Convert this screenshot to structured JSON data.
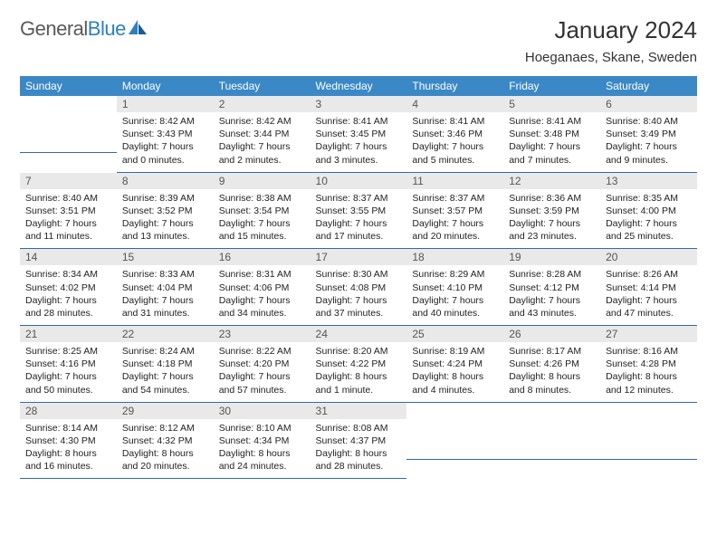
{
  "logo": {
    "text1": "General",
    "text2": "Blue"
  },
  "title": "January 2024",
  "location": "Hoeganaes, Skane, Sweden",
  "colors": {
    "header_bg": "#3b88c6",
    "header_text": "#ffffff",
    "daynum_bg": "#e9e9e9",
    "border": "#2d6da3",
    "logo_gray": "#5a5a5a",
    "logo_blue": "#2d7fc1"
  },
  "daysOfWeek": [
    "Sunday",
    "Monday",
    "Tuesday",
    "Wednesday",
    "Thursday",
    "Friday",
    "Saturday"
  ],
  "weeks": [
    [
      {
        "n": "",
        "sr": "",
        "ss": "",
        "dl": ""
      },
      {
        "n": "1",
        "sr": "Sunrise: 8:42 AM",
        "ss": "Sunset: 3:43 PM",
        "dl": "Daylight: 7 hours and 0 minutes."
      },
      {
        "n": "2",
        "sr": "Sunrise: 8:42 AM",
        "ss": "Sunset: 3:44 PM",
        "dl": "Daylight: 7 hours and 2 minutes."
      },
      {
        "n": "3",
        "sr": "Sunrise: 8:41 AM",
        "ss": "Sunset: 3:45 PM",
        "dl": "Daylight: 7 hours and 3 minutes."
      },
      {
        "n": "4",
        "sr": "Sunrise: 8:41 AM",
        "ss": "Sunset: 3:46 PM",
        "dl": "Daylight: 7 hours and 5 minutes."
      },
      {
        "n": "5",
        "sr": "Sunrise: 8:41 AM",
        "ss": "Sunset: 3:48 PM",
        "dl": "Daylight: 7 hours and 7 minutes."
      },
      {
        "n": "6",
        "sr": "Sunrise: 8:40 AM",
        "ss": "Sunset: 3:49 PM",
        "dl": "Daylight: 7 hours and 9 minutes."
      }
    ],
    [
      {
        "n": "7",
        "sr": "Sunrise: 8:40 AM",
        "ss": "Sunset: 3:51 PM",
        "dl": "Daylight: 7 hours and 11 minutes."
      },
      {
        "n": "8",
        "sr": "Sunrise: 8:39 AM",
        "ss": "Sunset: 3:52 PM",
        "dl": "Daylight: 7 hours and 13 minutes."
      },
      {
        "n": "9",
        "sr": "Sunrise: 8:38 AM",
        "ss": "Sunset: 3:54 PM",
        "dl": "Daylight: 7 hours and 15 minutes."
      },
      {
        "n": "10",
        "sr": "Sunrise: 8:37 AM",
        "ss": "Sunset: 3:55 PM",
        "dl": "Daylight: 7 hours and 17 minutes."
      },
      {
        "n": "11",
        "sr": "Sunrise: 8:37 AM",
        "ss": "Sunset: 3:57 PM",
        "dl": "Daylight: 7 hours and 20 minutes."
      },
      {
        "n": "12",
        "sr": "Sunrise: 8:36 AM",
        "ss": "Sunset: 3:59 PM",
        "dl": "Daylight: 7 hours and 23 minutes."
      },
      {
        "n": "13",
        "sr": "Sunrise: 8:35 AM",
        "ss": "Sunset: 4:00 PM",
        "dl": "Daylight: 7 hours and 25 minutes."
      }
    ],
    [
      {
        "n": "14",
        "sr": "Sunrise: 8:34 AM",
        "ss": "Sunset: 4:02 PM",
        "dl": "Daylight: 7 hours and 28 minutes."
      },
      {
        "n": "15",
        "sr": "Sunrise: 8:33 AM",
        "ss": "Sunset: 4:04 PM",
        "dl": "Daylight: 7 hours and 31 minutes."
      },
      {
        "n": "16",
        "sr": "Sunrise: 8:31 AM",
        "ss": "Sunset: 4:06 PM",
        "dl": "Daylight: 7 hours and 34 minutes."
      },
      {
        "n": "17",
        "sr": "Sunrise: 8:30 AM",
        "ss": "Sunset: 4:08 PM",
        "dl": "Daylight: 7 hours and 37 minutes."
      },
      {
        "n": "18",
        "sr": "Sunrise: 8:29 AM",
        "ss": "Sunset: 4:10 PM",
        "dl": "Daylight: 7 hours and 40 minutes."
      },
      {
        "n": "19",
        "sr": "Sunrise: 8:28 AM",
        "ss": "Sunset: 4:12 PM",
        "dl": "Daylight: 7 hours and 43 minutes."
      },
      {
        "n": "20",
        "sr": "Sunrise: 8:26 AM",
        "ss": "Sunset: 4:14 PM",
        "dl": "Daylight: 7 hours and 47 minutes."
      }
    ],
    [
      {
        "n": "21",
        "sr": "Sunrise: 8:25 AM",
        "ss": "Sunset: 4:16 PM",
        "dl": "Daylight: 7 hours and 50 minutes."
      },
      {
        "n": "22",
        "sr": "Sunrise: 8:24 AM",
        "ss": "Sunset: 4:18 PM",
        "dl": "Daylight: 7 hours and 54 minutes."
      },
      {
        "n": "23",
        "sr": "Sunrise: 8:22 AM",
        "ss": "Sunset: 4:20 PM",
        "dl": "Daylight: 7 hours and 57 minutes."
      },
      {
        "n": "24",
        "sr": "Sunrise: 8:20 AM",
        "ss": "Sunset: 4:22 PM",
        "dl": "Daylight: 8 hours and 1 minute."
      },
      {
        "n": "25",
        "sr": "Sunrise: 8:19 AM",
        "ss": "Sunset: 4:24 PM",
        "dl": "Daylight: 8 hours and 4 minutes."
      },
      {
        "n": "26",
        "sr": "Sunrise: 8:17 AM",
        "ss": "Sunset: 4:26 PM",
        "dl": "Daylight: 8 hours and 8 minutes."
      },
      {
        "n": "27",
        "sr": "Sunrise: 8:16 AM",
        "ss": "Sunset: 4:28 PM",
        "dl": "Daylight: 8 hours and 12 minutes."
      }
    ],
    [
      {
        "n": "28",
        "sr": "Sunrise: 8:14 AM",
        "ss": "Sunset: 4:30 PM",
        "dl": "Daylight: 8 hours and 16 minutes."
      },
      {
        "n": "29",
        "sr": "Sunrise: 8:12 AM",
        "ss": "Sunset: 4:32 PM",
        "dl": "Daylight: 8 hours and 20 minutes."
      },
      {
        "n": "30",
        "sr": "Sunrise: 8:10 AM",
        "ss": "Sunset: 4:34 PM",
        "dl": "Daylight: 8 hours and 24 minutes."
      },
      {
        "n": "31",
        "sr": "Sunrise: 8:08 AM",
        "ss": "Sunset: 4:37 PM",
        "dl": "Daylight: 8 hours and 28 minutes."
      },
      {
        "n": "",
        "sr": "",
        "ss": "",
        "dl": ""
      },
      {
        "n": "",
        "sr": "",
        "ss": "",
        "dl": ""
      },
      {
        "n": "",
        "sr": "",
        "ss": "",
        "dl": ""
      }
    ]
  ]
}
